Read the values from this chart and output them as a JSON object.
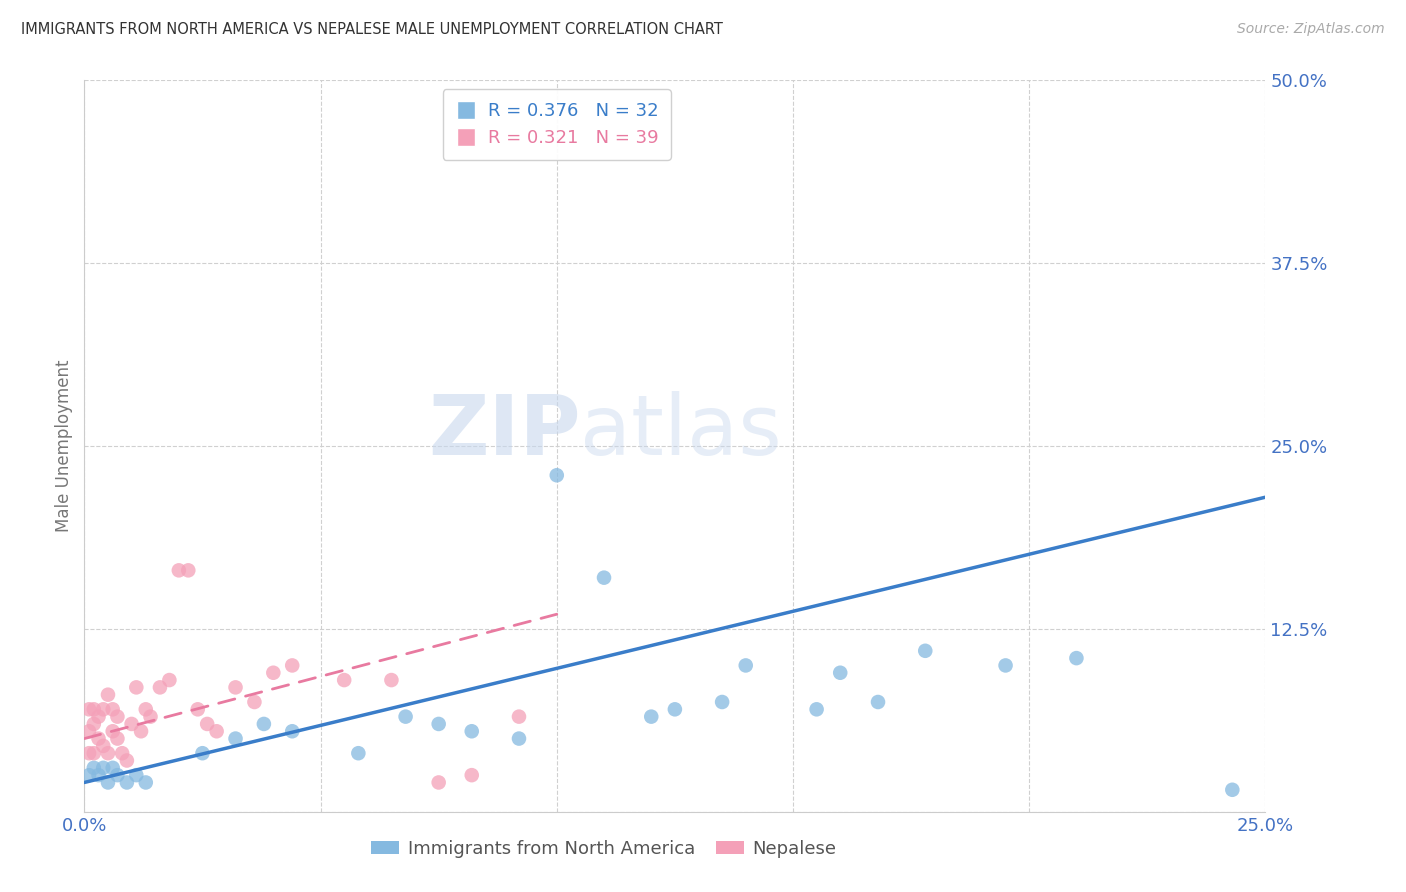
{
  "title": "IMMIGRANTS FROM NORTH AMERICA VS NEPALESE MALE UNEMPLOYMENT CORRELATION CHART",
  "source": "Source: ZipAtlas.com",
  "ylabel": "Male Unemployment",
  "xlim": [
    0.0,
    0.25
  ],
  "ylim": [
    0.0,
    0.5
  ],
  "yticks": [
    0.0,
    0.125,
    0.25,
    0.375,
    0.5
  ],
  "ytick_labels": [
    "",
    "12.5%",
    "25.0%",
    "37.5%",
    "50.0%"
  ],
  "xticks": [
    0.0,
    0.05,
    0.1,
    0.15,
    0.2,
    0.25
  ],
  "xtick_labels": [
    "0.0%",
    "",
    "",
    "",
    "",
    "25.0%"
  ],
  "blue_color": "#85b9e0",
  "pink_color": "#f4a0b8",
  "blue_line_color": "#3a7dc9",
  "pink_line_color": "#e87aa0",
  "legend_R_blue": "R = 0.376",
  "legend_N_blue": "N = 32",
  "legend_R_pink": "R = 0.321",
  "legend_N_pink": "N = 39",
  "legend_label_blue": "Immigrants from North America",
  "legend_label_pink": "Nepalese",
  "blue_x": [
    0.001,
    0.002,
    0.003,
    0.004,
    0.005,
    0.006,
    0.007,
    0.009,
    0.011,
    0.013,
    0.025,
    0.032,
    0.038,
    0.044,
    0.058,
    0.068,
    0.075,
    0.082,
    0.092,
    0.1,
    0.11,
    0.12,
    0.125,
    0.135,
    0.14,
    0.155,
    0.16,
    0.168,
    0.178,
    0.195,
    0.21,
    0.243
  ],
  "blue_y": [
    0.025,
    0.03,
    0.025,
    0.03,
    0.02,
    0.03,
    0.025,
    0.02,
    0.025,
    0.02,
    0.04,
    0.05,
    0.06,
    0.055,
    0.04,
    0.065,
    0.06,
    0.055,
    0.05,
    0.23,
    0.16,
    0.065,
    0.07,
    0.075,
    0.1,
    0.07,
    0.095,
    0.075,
    0.11,
    0.1,
    0.105,
    0.015
  ],
  "pink_x": [
    0.001,
    0.001,
    0.001,
    0.002,
    0.002,
    0.002,
    0.003,
    0.003,
    0.004,
    0.004,
    0.005,
    0.005,
    0.006,
    0.006,
    0.007,
    0.007,
    0.008,
    0.009,
    0.01,
    0.011,
    0.012,
    0.013,
    0.014,
    0.016,
    0.018,
    0.02,
    0.022,
    0.024,
    0.026,
    0.028,
    0.032,
    0.036,
    0.04,
    0.044,
    0.055,
    0.065,
    0.075,
    0.082,
    0.092
  ],
  "pink_y": [
    0.04,
    0.055,
    0.07,
    0.04,
    0.06,
    0.07,
    0.05,
    0.065,
    0.045,
    0.07,
    0.04,
    0.08,
    0.055,
    0.07,
    0.05,
    0.065,
    0.04,
    0.035,
    0.06,
    0.085,
    0.055,
    0.07,
    0.065,
    0.085,
    0.09,
    0.165,
    0.165,
    0.07,
    0.06,
    0.055,
    0.085,
    0.075,
    0.095,
    0.1,
    0.09,
    0.09,
    0.02,
    0.025,
    0.065
  ],
  "blue_line_x": [
    0.0,
    0.25
  ],
  "blue_line_y": [
    0.02,
    0.215
  ],
  "pink_line_x": [
    0.0,
    0.1
  ],
  "pink_line_y": [
    0.05,
    0.135
  ],
  "background_color": "#ffffff",
  "grid_color": "#d0d0d0",
  "tick_color": "#4472c4",
  "title_color": "#333333",
  "source_color": "#aaaaaa",
  "axis_label_color": "#777777"
}
